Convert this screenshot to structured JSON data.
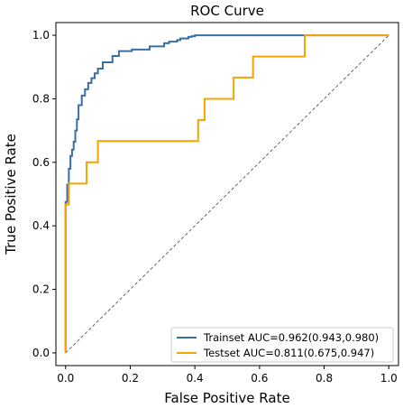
{
  "chart_data": {
    "type": "line",
    "title": "ROC Curve",
    "xlabel": "False Positive Rate",
    "ylabel": "True Positive Rate",
    "xlim": [
      -0.03,
      1.03
    ],
    "ylim": [
      -0.04,
      1.04
    ],
    "xticks": [
      0.0,
      0.2,
      0.4,
      0.6,
      0.8,
      1.0
    ],
    "yticks": [
      0.0,
      0.2,
      0.4,
      0.6,
      0.8,
      1.0
    ],
    "xtick_labels": [
      "0.0",
      "0.2",
      "0.4",
      "0.6",
      "0.8",
      "1.0"
    ],
    "ytick_labels": [
      "0.0",
      "0.2",
      "0.4",
      "0.6",
      "0.8",
      "1.0"
    ],
    "grid": false,
    "legend_position": "bottom-right",
    "reference_line": {
      "x": [
        0,
        1
      ],
      "y": [
        0,
        1
      ],
      "style": "dashed",
      "color": "#555555"
    },
    "series": [
      {
        "name": "Trainset AUC=0.962(0.943,0.980)",
        "color": "#3a6fa6",
        "x": [
          0.0,
          0.0,
          0.005,
          0.005,
          0.01,
          0.01,
          0.015,
          0.015,
          0.02,
          0.02,
          0.025,
          0.025,
          0.03,
          0.03,
          0.035,
          0.035,
          0.04,
          0.04,
          0.05,
          0.05,
          0.06,
          0.06,
          0.07,
          0.07,
          0.08,
          0.08,
          0.09,
          0.09,
          0.1,
          0.1,
          0.115,
          0.115,
          0.145,
          0.145,
          0.165,
          0.165,
          0.205,
          0.205,
          0.26,
          0.26,
          0.305,
          0.305,
          0.32,
          0.32,
          0.345,
          0.345,
          0.355,
          0.355,
          0.38,
          0.38,
          0.39,
          0.39,
          0.4,
          0.4,
          0.74,
          1.0
        ],
        "y": [
          0.0,
          0.475,
          0.475,
          0.53,
          0.53,
          0.58,
          0.58,
          0.62,
          0.62,
          0.64,
          0.64,
          0.665,
          0.665,
          0.7,
          0.7,
          0.735,
          0.735,
          0.78,
          0.78,
          0.81,
          0.81,
          0.83,
          0.83,
          0.85,
          0.85,
          0.865,
          0.865,
          0.88,
          0.88,
          0.895,
          0.895,
          0.915,
          0.915,
          0.935,
          0.935,
          0.95,
          0.95,
          0.955,
          0.955,
          0.965,
          0.965,
          0.975,
          0.975,
          0.98,
          0.98,
          0.985,
          0.985,
          0.99,
          0.99,
          0.995,
          0.995,
          0.997,
          0.997,
          1.0,
          1.0,
          1.0
        ]
      },
      {
        "name": "Testset AUC=0.811(0.675,0.947)",
        "color": "#f5a300",
        "x": [
          0.0,
          0.0,
          0.01,
          0.01,
          0.065,
          0.065,
          0.1,
          0.1,
          0.41,
          0.41,
          0.43,
          0.43,
          0.52,
          0.52,
          0.58,
          0.58,
          0.74,
          0.74,
          1.0
        ],
        "y": [
          0.0,
          0.467,
          0.467,
          0.533,
          0.533,
          0.6,
          0.6,
          0.667,
          0.667,
          0.733,
          0.733,
          0.8,
          0.8,
          0.867,
          0.867,
          0.933,
          0.933,
          1.0,
          1.0
        ]
      }
    ]
  }
}
